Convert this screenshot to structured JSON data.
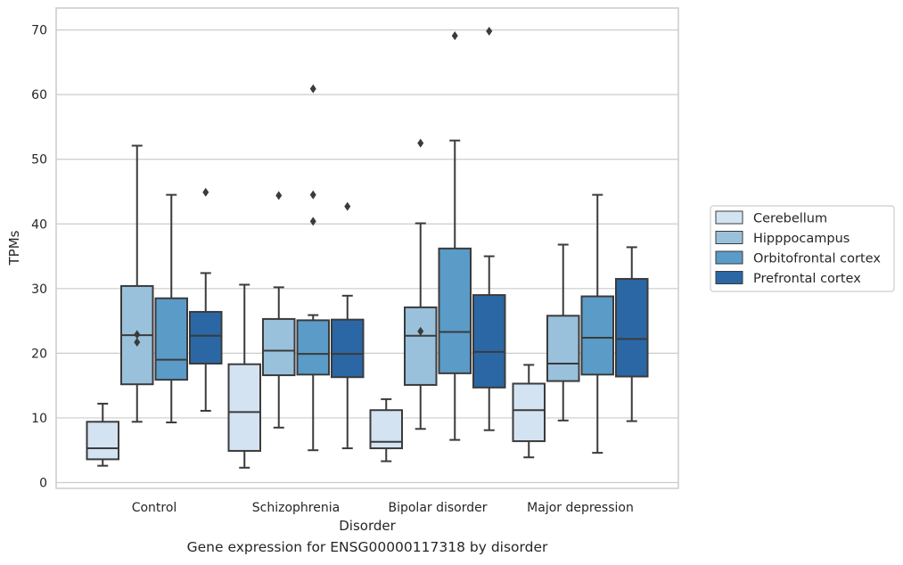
{
  "caption": "Gene expression for ENSG00000117318 by disorder",
  "chart_data": {
    "type": "boxplot",
    "xlabel": "Disorder",
    "ylabel": "TPMs",
    "ylim": [
      -1,
      73.5
    ],
    "yticks": [
      0,
      10,
      20,
      30,
      40,
      50,
      60,
      70
    ],
    "grid": "horizontal",
    "legend_position": "right",
    "categories": [
      "Control",
      "Schizophrenia",
      "Bipolar disorder",
      "Major depression"
    ],
    "series": [
      {
        "name": "Cerebellum",
        "color": "#d4e3f2",
        "boxes": [
          {
            "whislo": 2.6,
            "q1": 3.6,
            "med": 5.3,
            "q3": 9.4,
            "whishi": 12.2,
            "fliers": []
          },
          {
            "whislo": 2.3,
            "q1": 4.9,
            "med": 10.9,
            "q3": 18.3,
            "whishi": 30.6,
            "fliers": []
          },
          {
            "whislo": 3.3,
            "q1": 5.3,
            "med": 6.3,
            "q3": 11.2,
            "whishi": 12.9,
            "fliers": []
          },
          {
            "whislo": 3.9,
            "q1": 6.4,
            "med": 11.2,
            "q3": 15.3,
            "whishi": 18.2,
            "fliers": []
          }
        ]
      },
      {
        "name": "Hipppocampus",
        "color": "#99c1dc",
        "boxes": [
          {
            "whislo": 9.4,
            "q1": 15.2,
            "med": 22.8,
            "q3": 30.4,
            "whishi": 52.1,
            "fliers": [
              21.7,
              22.9
            ]
          },
          {
            "whislo": 8.5,
            "q1": 16.6,
            "med": 20.4,
            "q3": 25.3,
            "whishi": 30.2,
            "fliers": [
              44.4
            ]
          },
          {
            "whislo": 8.3,
            "q1": 15.1,
            "med": 22.7,
            "q3": 27.1,
            "whishi": 40.1,
            "fliers": [
              23.4,
              52.5
            ]
          },
          {
            "whislo": 9.6,
            "q1": 15.7,
            "med": 18.4,
            "q3": 25.8,
            "whishi": 36.8,
            "fliers": []
          }
        ]
      },
      {
        "name": "Orbitofrontal cortex",
        "color": "#5a9bc8",
        "boxes": [
          {
            "whislo": 9.3,
            "q1": 15.9,
            "med": 19.0,
            "q3": 28.5,
            "whishi": 44.5,
            "fliers": []
          },
          {
            "whislo": 5.0,
            "q1": 16.7,
            "med": 19.9,
            "q3": 25.1,
            "whishi": 25.9,
            "fliers": [
              40.4,
              44.5,
              60.9
            ]
          },
          {
            "whislo": 6.6,
            "q1": 16.9,
            "med": 23.3,
            "q3": 36.2,
            "whishi": 52.9,
            "fliers": [
              69.1
            ]
          },
          {
            "whislo": 4.6,
            "q1": 16.7,
            "med": 22.4,
            "q3": 28.8,
            "whishi": 44.5,
            "fliers": []
          }
        ]
      },
      {
        "name": "Prefrontal cortex",
        "color": "#2b67a5",
        "boxes": [
          {
            "whislo": 11.1,
            "q1": 18.4,
            "med": 22.7,
            "q3": 26.4,
            "whishi": 32.4,
            "fliers": [
              44.9
            ]
          },
          {
            "whislo": 5.3,
            "q1": 16.3,
            "med": 19.9,
            "q3": 25.2,
            "whishi": 28.9,
            "fliers": [
              42.7
            ]
          },
          {
            "whislo": 8.1,
            "q1": 14.7,
            "med": 20.2,
            "q3": 29.0,
            "whishi": 35.0,
            "fliers": [
              69.8
            ]
          },
          {
            "whislo": 9.5,
            "q1": 16.4,
            "med": 22.2,
            "q3": 31.5,
            "whishi": 36.4,
            "fliers": []
          }
        ]
      }
    ]
  }
}
